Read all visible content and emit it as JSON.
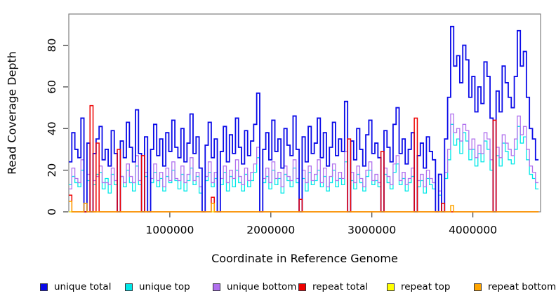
{
  "figure": {
    "background": "#ffffff",
    "box_color": "#7f7f7f",
    "tick_color": "#3c3c3c",
    "text_color": "#000000"
  },
  "chart_data": {
    "type": "line",
    "step_interpolation": true,
    "title": "",
    "xlabel": "Coordinate in Reference Genome",
    "ylabel": "Read Coverage Depth",
    "xlim": [
      0,
      4670000
    ],
    "ylim": [
      0,
      95
    ],
    "grid": false,
    "legend_position": "bottom",
    "x_ticks": [
      {
        "value": 1000000,
        "label": "1000000"
      },
      {
        "value": 2000000,
        "label": "2000000"
      },
      {
        "value": 3000000,
        "label": "3000000"
      },
      {
        "value": 4000000,
        "label": "4000000"
      }
    ],
    "y_ticks": [
      {
        "value": 0,
        "label": "0"
      },
      {
        "value": 20,
        "label": "20"
      },
      {
        "value": 40,
        "label": "40"
      },
      {
        "value": 60,
        "label": "60"
      },
      {
        "value": 80,
        "label": "80"
      }
    ],
    "x_start": 0,
    "x_step": 30000,
    "series": [
      {
        "name": "unique total",
        "key": "unique-total",
        "color": "#0a0ae8",
        "z": 4,
        "width": 1.8,
        "values": [
          24,
          38,
          30,
          26,
          45,
          0,
          33,
          0,
          28,
          35,
          41,
          25,
          30,
          22,
          39,
          28,
          0,
          34,
          26,
          43,
          31,
          24,
          49,
          28,
          0,
          36,
          0,
          30,
          42,
          27,
          35,
          22,
          38,
          29,
          44,
          31,
          26,
          40,
          24,
          33,
          47,
          28,
          36,
          21,
          0,
          32,
          43,
          26,
          35,
          0,
          29,
          41,
          24,
          37,
          28,
          45,
          31,
          23,
          39,
          27,
          34,
          42,
          57,
          0,
          30,
          38,
          25,
          44,
          29,
          35,
          21,
          40,
          32,
          27,
          46,
          30,
          0,
          36,
          24,
          41,
          28,
          33,
          45,
          26,
          38,
          22,
          31,
          43,
          27,
          35,
          29,
          53,
          0,
          34,
          25,
          40,
          30,
          22,
          37,
          44,
          28,
          33,
          26,
          0,
          39,
          31,
          24,
          42,
          50,
          28,
          35,
          23,
          30,
          38,
          0,
          27,
          33,
          21,
          36,
          29,
          25,
          0,
          18,
          0,
          35,
          55,
          89,
          70,
          75,
          62,
          80,
          73,
          55,
          65,
          48,
          60,
          52,
          72,
          65,
          45,
          0,
          58,
          48,
          70,
          62,
          55,
          50,
          65,
          87,
          70,
          77,
          55,
          40,
          35,
          25
        ]
      },
      {
        "name": "unique top",
        "key": "unique-top",
        "color": "#00e8e8",
        "z": 1,
        "width": 1.3,
        "values": [
          13,
          17,
          14,
          12,
          20,
          0,
          15,
          0,
          13,
          18,
          19,
          11,
          16,
          9,
          18,
          13,
          0,
          17,
          12,
          20,
          14,
          10,
          22,
          13,
          0,
          17,
          0,
          14,
          19,
          12,
          16,
          10,
          17,
          14,
          20,
          15,
          11,
          18,
          10,
          15,
          21,
          13,
          17,
          9,
          0,
          15,
          19,
          12,
          16,
          0,
          13,
          19,
          10,
          17,
          12,
          20,
          14,
          10,
          18,
          12,
          15,
          19,
          26,
          0,
          14,
          17,
          11,
          20,
          13,
          16,
          9,
          18,
          15,
          12,
          21,
          14,
          0,
          16,
          10,
          19,
          13,
          15,
          20,
          12,
          17,
          10,
          14,
          20,
          12,
          16,
          13,
          24,
          0,
          15,
          11,
          18,
          14,
          10,
          17,
          20,
          13,
          15,
          12,
          0,
          18,
          14,
          11,
          19,
          23,
          13,
          16,
          10,
          14,
          17,
          0,
          12,
          15,
          9,
          16,
          13,
          11,
          0,
          8,
          0,
          16,
          25,
          42,
          32,
          35,
          28,
          38,
          34,
          25,
          30,
          22,
          28,
          24,
          34,
          30,
          20,
          0,
          27,
          22,
          33,
          29,
          25,
          23,
          30,
          41,
          33,
          36,
          25,
          18,
          16,
          11
        ]
      },
      {
        "name": "unique bottom",
        "key": "unique-bottom",
        "color": "#b070ee",
        "z": 2,
        "width": 1.3,
        "values": [
          11,
          21,
          16,
          14,
          25,
          0,
          18,
          0,
          15,
          17,
          22,
          14,
          14,
          13,
          21,
          15,
          0,
          17,
          14,
          23,
          17,
          14,
          27,
          15,
          0,
          19,
          0,
          16,
          23,
          15,
          19,
          12,
          21,
          15,
          24,
          16,
          15,
          22,
          14,
          18,
          26,
          15,
          19,
          12,
          0,
          17,
          24,
          14,
          19,
          0,
          16,
          22,
          14,
          20,
          16,
          25,
          17,
          13,
          21,
          15,
          19,
          23,
          31,
          0,
          16,
          21,
          14,
          24,
          16,
          19,
          12,
          22,
          17,
          15,
          25,
          16,
          0,
          20,
          14,
          22,
          15,
          18,
          25,
          14,
          21,
          12,
          17,
          23,
          15,
          19,
          16,
          29,
          0,
          19,
          14,
          22,
          16,
          12,
          20,
          24,
          15,
          18,
          14,
          0,
          21,
          17,
          13,
          23,
          27,
          15,
          19,
          13,
          16,
          21,
          0,
          15,
          18,
          12,
          20,
          16,
          14,
          0,
          10,
          0,
          19,
          30,
          47,
          38,
          40,
          34,
          42,
          39,
          30,
          35,
          26,
          32,
          28,
          38,
          35,
          25,
          0,
          31,
          26,
          37,
          33,
          30,
          27,
          35,
          46,
          37,
          41,
          30,
          22,
          19,
          14
        ]
      },
      {
        "name": "repeat total",
        "key": "repeat-total",
        "color": "#ee0000",
        "z": 5,
        "width": 1.5,
        "length": 155,
        "baseline": 0,
        "spikes": [
          [
            0,
            8
          ],
          [
            7,
            51
          ],
          [
            9,
            33
          ],
          [
            16,
            30
          ],
          [
            24,
            27
          ],
          [
            47,
            7
          ],
          [
            76,
            6
          ],
          [
            92,
            35
          ],
          [
            103,
            29
          ],
          [
            114,
            45
          ],
          [
            123,
            4
          ],
          [
            140,
            44
          ]
        ]
      },
      {
        "name": "repeat top",
        "key": "repeat-top",
        "color": "#ffff00",
        "z": 0,
        "width": 1.3,
        "length": 155,
        "baseline": 0,
        "spikes": []
      },
      {
        "name": "repeat bottom",
        "key": "repeat-bottom",
        "color": "#ffa500",
        "z": 6,
        "width": 1.5,
        "length": 155,
        "baseline": 0,
        "spikes": [
          [
            0,
            5
          ],
          [
            5,
            4
          ],
          [
            47,
            4
          ],
          [
            126,
            3
          ]
        ]
      }
    ]
  }
}
